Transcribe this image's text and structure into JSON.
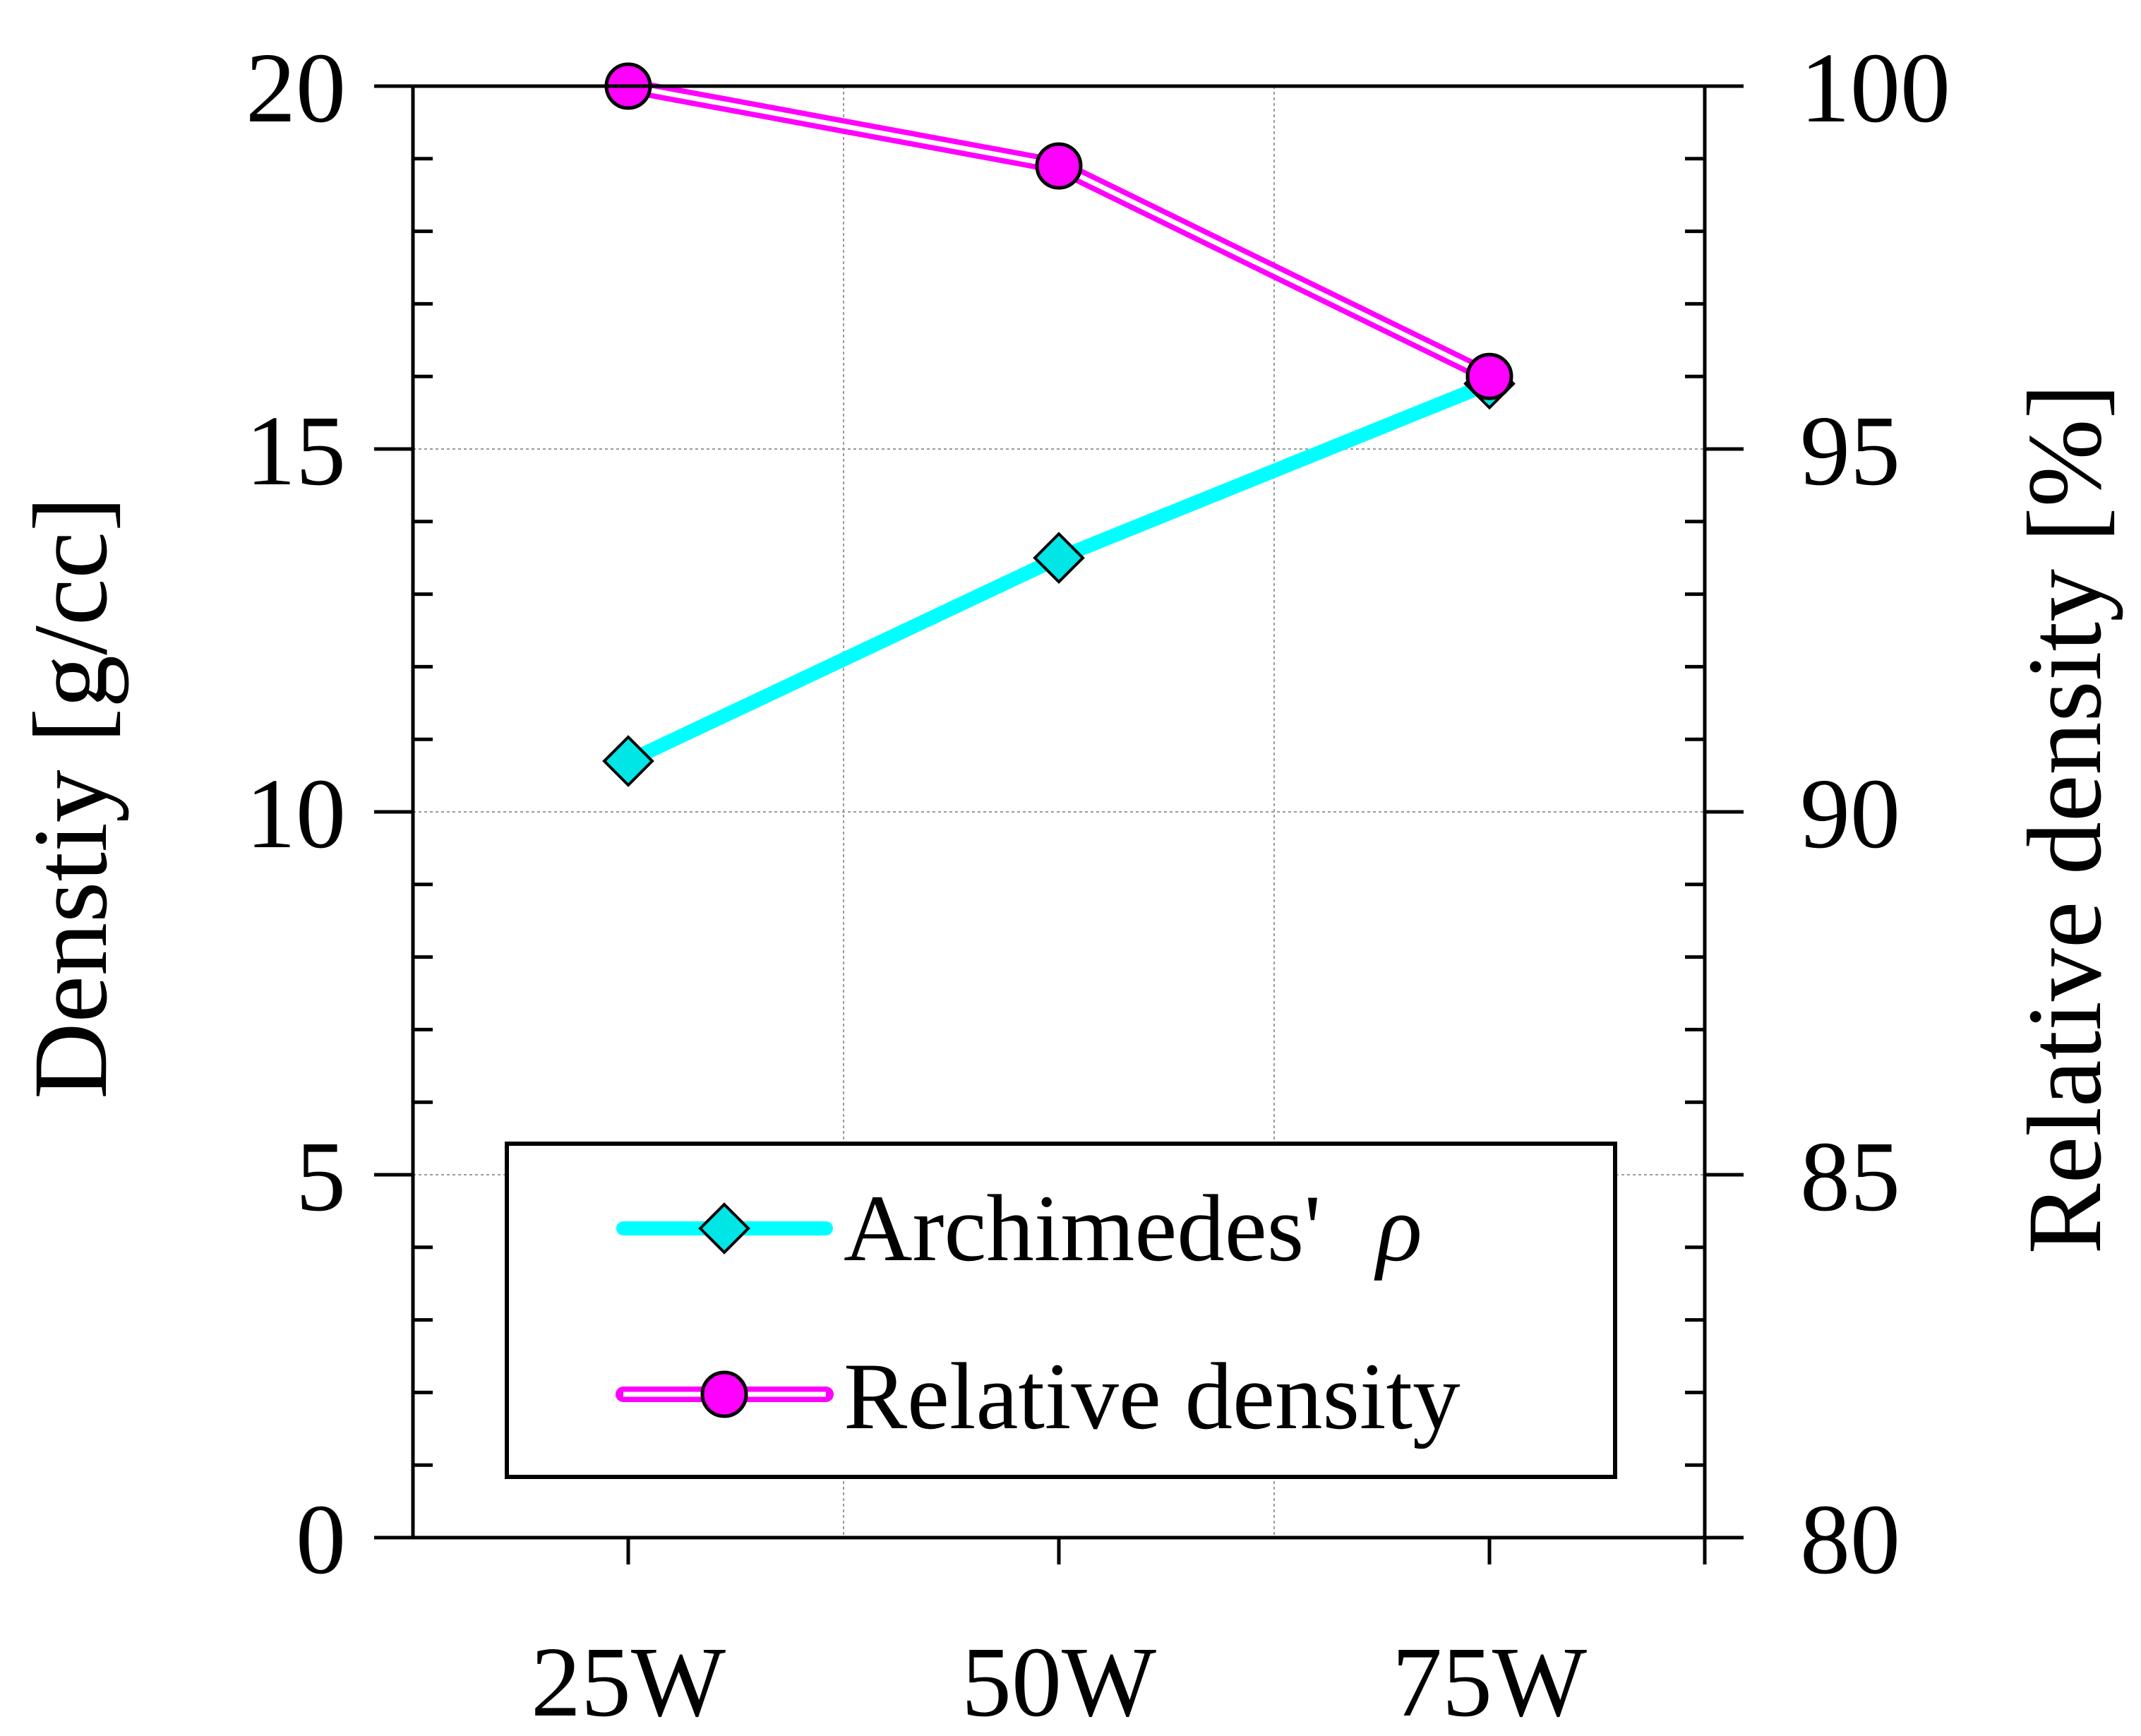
{
  "chart_data": {
    "type": "line",
    "title": "",
    "categories": [
      "25W",
      "50W",
      "75W"
    ],
    "xlabel": "",
    "ylabel_left": "Denstiy [g/cc]",
    "ylabel_right": "Relative density [%]",
    "ylim_left": [
      0,
      20
    ],
    "ylim_right": [
      80,
      100
    ],
    "yticks_left": [
      "0",
      "5",
      "10",
      "15",
      "20"
    ],
    "yticks_right": [
      "80",
      "85",
      "90",
      "95",
      "100"
    ],
    "grid": true,
    "legend_position": "bottom-center",
    "series": [
      {
        "name": "Archimedes' ρ",
        "legend_label": "Archimedes'",
        "legend_symbol": "ρ",
        "axis": "left",
        "values": [
          10.7,
          13.5,
          15.9
        ],
        "color": "#00ffff",
        "marker": "diamond"
      },
      {
        "name": "Relative density",
        "legend_label": "Relative density",
        "axis": "right",
        "values": [
          100.0,
          98.9,
          96.0
        ],
        "color": "#ff00ff",
        "marker": "circle"
      }
    ]
  }
}
